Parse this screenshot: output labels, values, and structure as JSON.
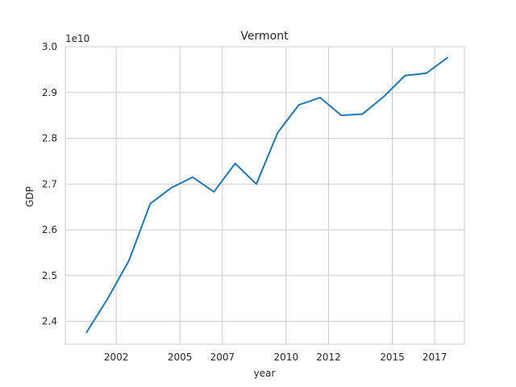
{
  "chart_data": {
    "type": "line",
    "title": "Vermont",
    "xlabel": "year",
    "ylabel": "GDP",
    "y_offset_text": "1e10",
    "xlim": [
      1999.6,
      2018.4
    ],
    "ylim": [
      2.35,
      3.0
    ],
    "x_ticks": [
      2002,
      2005,
      2007,
      2010,
      2012,
      2015,
      2017
    ],
    "x_tick_labels": [
      "2002",
      "2005",
      "2007",
      "2010",
      "2012",
      "2015",
      "2017"
    ],
    "y_ticks": [
      2.4,
      2.5,
      2.6,
      2.7,
      2.8,
      2.9,
      3.0
    ],
    "y_tick_labels": [
      "2.4",
      "2.5",
      "2.6",
      "2.7",
      "2.8",
      "2.9",
      "3.0"
    ],
    "grid": true,
    "legend": "none",
    "colors": {
      "line": "#1f77b4",
      "grid": "#cccccc",
      "spine": "#cccccc",
      "text": "#262626"
    },
    "series": [
      {
        "x": [
          2000.6,
          2001.6,
          2002.6,
          2003.6,
          2004.6,
          2005.6,
          2006.6,
          2007.6,
          2008.6,
          2009.6,
          2010.6,
          2011.6,
          2012.6,
          2013.6,
          2014.6,
          2015.6,
          2016.6,
          2017.6
        ],
        "values": [
          2.376,
          2.45,
          2.533,
          2.657,
          2.692,
          2.715,
          2.683,
          2.745,
          2.7,
          2.812,
          2.873,
          2.889,
          2.85,
          2.853,
          2.891,
          2.937,
          2.942,
          2.976
        ]
      }
    ]
  }
}
